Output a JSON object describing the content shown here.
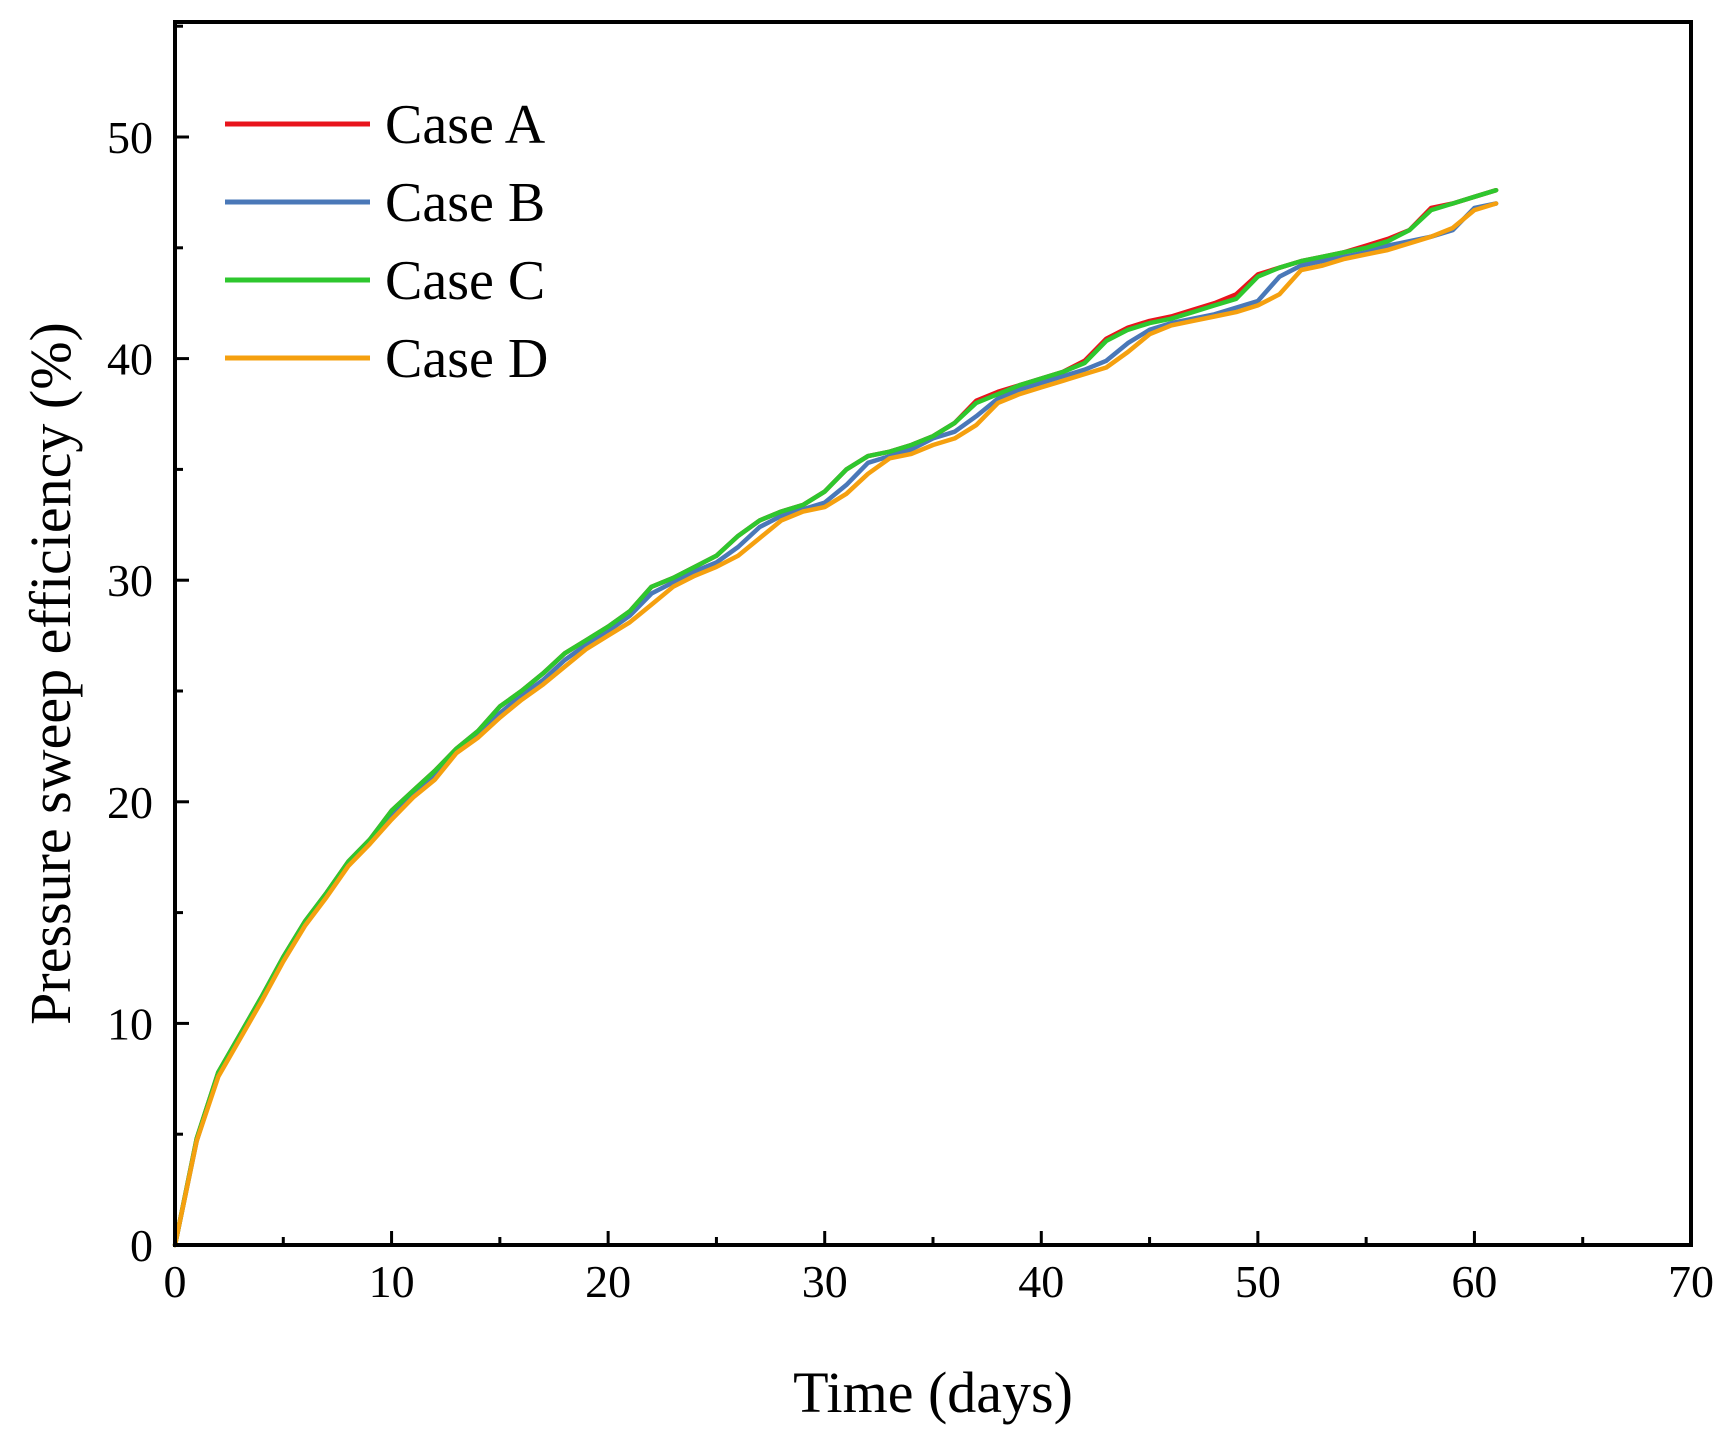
{
  "chart_data": {
    "type": "line",
    "title": "",
    "xlabel": "Time (days)",
    "ylabel": "Pressure sweep efficiency (%)",
    "xlim": [
      0,
      70
    ],
    "ylim": [
      0,
      55
    ],
    "xticks": [
      0,
      10,
      20,
      30,
      40,
      50,
      60,
      70
    ],
    "yticks": [
      0,
      10,
      20,
      30,
      40,
      50
    ],
    "grid": false,
    "legend_position": "top-left",
    "series": [
      {
        "name": "Case A",
        "color": "#e8141c",
        "x": [
          0,
          1,
          2,
          3,
          4,
          5,
          6,
          7,
          8,
          9,
          10,
          11,
          12,
          13,
          14,
          15,
          16,
          17,
          18,
          19,
          20,
          21,
          22,
          23,
          24,
          25,
          26,
          27,
          28,
          29,
          30,
          31,
          32,
          33,
          34,
          35,
          36,
          37,
          38,
          39,
          40,
          41,
          42,
          43,
          44,
          45,
          46,
          47,
          48,
          49,
          50,
          51,
          52,
          53,
          54,
          55,
          56,
          57,
          58,
          59,
          60,
          61
        ],
        "values": [
          0,
          4.8,
          7.8,
          9.5,
          11.2,
          13.0,
          14.6,
          15.9,
          17.3,
          18.3,
          19.6,
          20.5,
          21.4,
          22.4,
          23.2,
          24.3,
          25.0,
          25.8,
          26.7,
          27.3,
          27.9,
          28.6,
          29.7,
          30.1,
          30.6,
          31.1,
          32.0,
          32.7,
          33.1,
          33.4,
          34.0,
          35.0,
          35.6,
          35.8,
          36.1,
          36.5,
          37.1,
          38.1,
          38.5,
          38.8,
          39.1,
          39.4,
          39.9,
          40.9,
          41.4,
          41.7,
          41.9,
          42.2,
          42.5,
          42.9,
          43.8,
          44.1,
          44.4,
          44.6,
          44.8,
          45.1,
          45.4,
          45.8,
          46.8,
          47.0,
          47.3,
          47.6
        ]
      },
      {
        "name": "Case B",
        "color": "#4a78b8",
        "x": [
          0,
          1,
          2,
          3,
          4,
          5,
          6,
          7,
          8,
          9,
          10,
          11,
          12,
          13,
          14,
          15,
          16,
          17,
          18,
          19,
          20,
          21,
          22,
          23,
          24,
          25,
          26,
          27,
          28,
          29,
          30,
          31,
          32,
          33,
          34,
          35,
          36,
          37,
          38,
          39,
          40,
          41,
          42,
          43,
          44,
          45,
          46,
          47,
          48,
          49,
          50,
          51,
          52,
          53,
          54,
          55,
          56,
          57,
          58,
          59,
          60,
          61
        ],
        "values": [
          0,
          4.7,
          7.7,
          9.4,
          11.1,
          12.9,
          14.5,
          15.8,
          17.2,
          18.2,
          19.4,
          20.3,
          21.2,
          22.3,
          23.0,
          24.0,
          24.8,
          25.5,
          26.4,
          27.1,
          27.7,
          28.4,
          29.4,
          29.9,
          30.4,
          30.8,
          31.5,
          32.4,
          32.9,
          33.2,
          33.5,
          34.3,
          35.3,
          35.6,
          35.9,
          36.4,
          36.7,
          37.4,
          38.2,
          38.6,
          38.9,
          39.2,
          39.5,
          39.9,
          40.7,
          41.3,
          41.6,
          41.8,
          42.0,
          42.3,
          42.6,
          43.7,
          44.2,
          44.4,
          44.6,
          44.8,
          45.1,
          45.3,
          45.5,
          45.8,
          46.8,
          47.0
        ]
      },
      {
        "name": "Case C",
        "color": "#2ec72e",
        "x": [
          0,
          1,
          2,
          3,
          4,
          5,
          6,
          7,
          8,
          9,
          10,
          11,
          12,
          13,
          14,
          15,
          16,
          17,
          18,
          19,
          20,
          21,
          22,
          23,
          24,
          25,
          26,
          27,
          28,
          29,
          30,
          31,
          32,
          33,
          34,
          35,
          36,
          37,
          38,
          39,
          40,
          41,
          42,
          43,
          44,
          45,
          46,
          47,
          48,
          49,
          50,
          51,
          52,
          53,
          54,
          55,
          56,
          57,
          58,
          59,
          60,
          61
        ],
        "values": [
          0,
          4.8,
          7.8,
          9.5,
          11.2,
          13.0,
          14.6,
          15.9,
          17.3,
          18.3,
          19.6,
          20.5,
          21.4,
          22.4,
          23.2,
          24.3,
          25.0,
          25.8,
          26.7,
          27.3,
          27.9,
          28.6,
          29.7,
          30.1,
          30.6,
          31.1,
          32.0,
          32.7,
          33.1,
          33.4,
          34.0,
          35.0,
          35.6,
          35.8,
          36.1,
          36.5,
          37.1,
          38.0,
          38.4,
          38.8,
          39.1,
          39.4,
          39.8,
          40.8,
          41.3,
          41.6,
          41.8,
          42.1,
          42.4,
          42.7,
          43.7,
          44.1,
          44.4,
          44.6,
          44.8,
          45.0,
          45.3,
          45.8,
          46.7,
          47.0,
          47.3,
          47.6
        ]
      },
      {
        "name": "Case D",
        "color": "#f5a00f",
        "x": [
          0,
          1,
          2,
          3,
          4,
          5,
          6,
          7,
          8,
          9,
          10,
          11,
          12,
          13,
          14,
          15,
          16,
          17,
          18,
          19,
          20,
          21,
          22,
          23,
          24,
          25,
          26,
          27,
          28,
          29,
          30,
          31,
          32,
          33,
          34,
          35,
          36,
          37,
          38,
          39,
          40,
          41,
          42,
          43,
          44,
          45,
          46,
          47,
          48,
          49,
          50,
          51,
          52,
          53,
          54,
          55,
          56,
          57,
          58,
          59,
          60,
          61
        ],
        "values": [
          0,
          4.7,
          7.6,
          9.3,
          11.0,
          12.8,
          14.4,
          15.7,
          17.1,
          18.1,
          19.2,
          20.2,
          21.0,
          22.2,
          22.9,
          23.8,
          24.6,
          25.3,
          26.1,
          26.9,
          27.5,
          28.1,
          28.9,
          29.7,
          30.2,
          30.6,
          31.1,
          31.9,
          32.7,
          33.1,
          33.3,
          33.9,
          34.8,
          35.5,
          35.7,
          36.1,
          36.4,
          37.0,
          38.0,
          38.4,
          38.7,
          39.0,
          39.3,
          39.6,
          40.3,
          41.1,
          41.5,
          41.7,
          41.9,
          42.1,
          42.4,
          42.9,
          44.0,
          44.2,
          44.5,
          44.7,
          44.9,
          45.2,
          45.5,
          45.9,
          46.7,
          47.0
        ]
      }
    ]
  }
}
